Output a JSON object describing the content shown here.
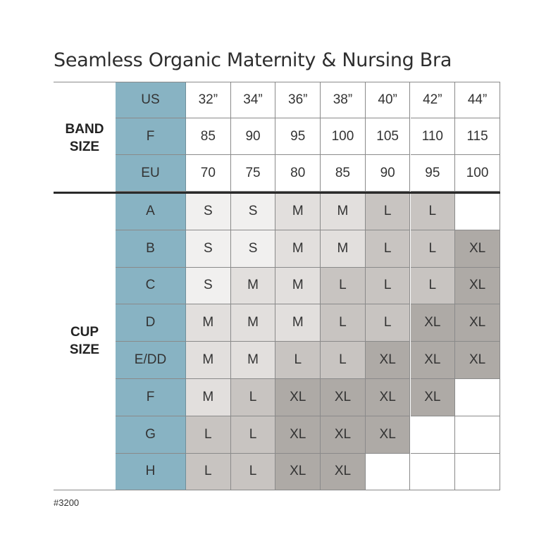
{
  "title": "Seamless Organic Maternity & Nursing Bra",
  "band_size_label": [
    "BAND",
    "SIZE"
  ],
  "cup_size_label": [
    "CUP",
    "SIZE"
  ],
  "footnote": "#3200",
  "colors": {
    "header_blue": "#88b3c3",
    "S": "#f1f0ef",
    "M": "#e2dfdd",
    "L": "#c8c4c1",
    "XL": "#aeaaa6",
    "empty": "#ffffff"
  },
  "band_rows": [
    {
      "label": "US",
      "values": [
        "32”",
        "34”",
        "36”",
        "38”",
        "40”",
        "42”",
        "44”"
      ]
    },
    {
      "label": "F",
      "values": [
        "85",
        "90",
        "95",
        "100",
        "105",
        "110",
        "115"
      ]
    },
    {
      "label": "EU",
      "values": [
        "70",
        "75",
        "80",
        "85",
        "90",
        "95",
        "100"
      ]
    }
  ],
  "cup_rows": [
    {
      "label": "A",
      "values": [
        "S",
        "S",
        "M",
        "M",
        "L",
        "L",
        ""
      ]
    },
    {
      "label": "B",
      "values": [
        "S",
        "S",
        "M",
        "M",
        "L",
        "L",
        "XL"
      ]
    },
    {
      "label": "C",
      "values": [
        "S",
        "M",
        "M",
        "L",
        "L",
        "L",
        "XL"
      ]
    },
    {
      "label": "D",
      "values": [
        "M",
        "M",
        "M",
        "L",
        "L",
        "XL",
        "XL"
      ]
    },
    {
      "label": "E/DD",
      "values": [
        "M",
        "M",
        "L",
        "L",
        "XL",
        "XL",
        "XL"
      ]
    },
    {
      "label": "F",
      "values": [
        "M",
        "L",
        "XL",
        "XL",
        "XL",
        "XL",
        ""
      ]
    },
    {
      "label": "G",
      "values": [
        "L",
        "L",
        "XL",
        "XL",
        "XL",
        "",
        ""
      ]
    },
    {
      "label": "H",
      "values": [
        "L",
        "L",
        "XL",
        "XL",
        "",
        "",
        ""
      ]
    }
  ]
}
